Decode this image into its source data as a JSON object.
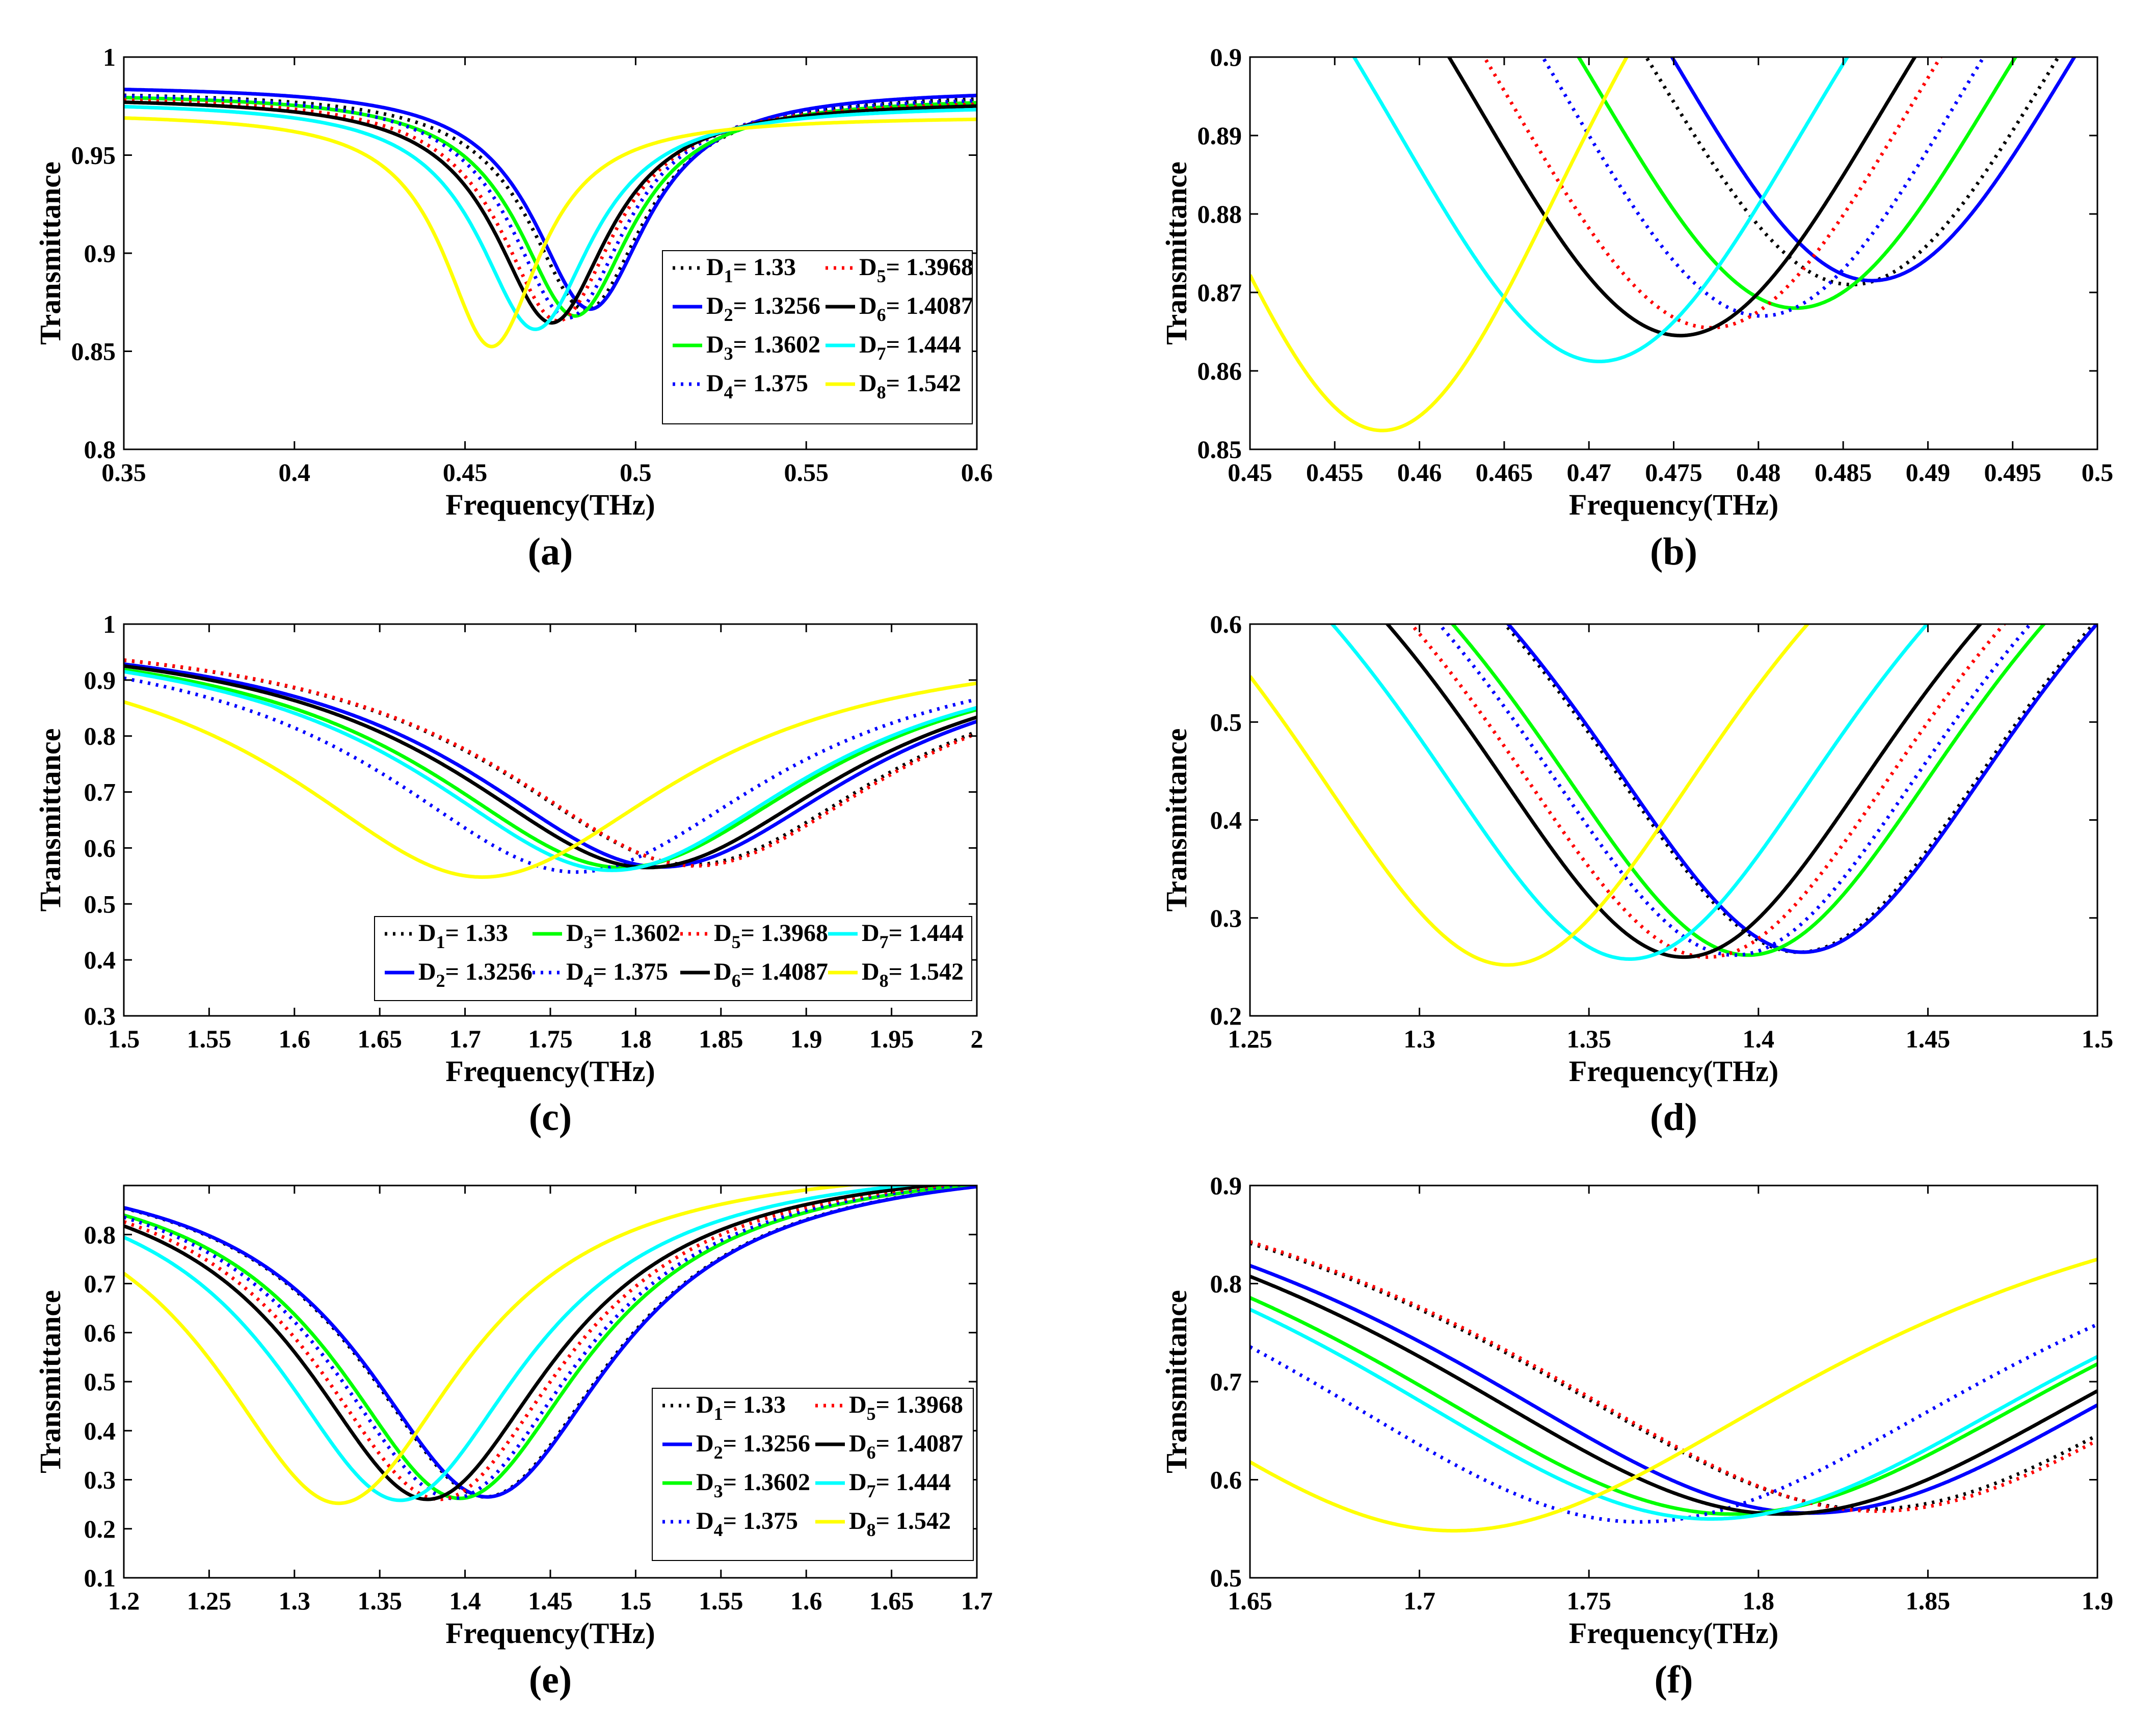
{
  "figure": {
    "series_styles": [
      {
        "name": "D1",
        "color": "#000000",
        "dash": "dotted"
      },
      {
        "name": "D2",
        "color": "#0000ff",
        "dash": "solid"
      },
      {
        "name": "D3",
        "color": "#00ff00",
        "dash": "solid"
      },
      {
        "name": "D4",
        "color": "#0000ff",
        "dash": "dotted"
      },
      {
        "name": "D5",
        "color": "#ff0000",
        "dash": "dotted"
      },
      {
        "name": "D6",
        "color": "#000000",
        "dash": "solid"
      },
      {
        "name": "D7",
        "color": "#00ffff",
        "dash": "solid"
      },
      {
        "name": "D8",
        "color": "#ffff00",
        "dash": "solid"
      }
    ],
    "legend_entries": [
      {
        "sub": "1",
        "value": "1.33"
      },
      {
        "sub": "2",
        "value": "1.3256"
      },
      {
        "sub": "3",
        "value": "1.3602"
      },
      {
        "sub": "4",
        "value": "1.375"
      },
      {
        "sub": "5",
        "value": "1.3968"
      },
      {
        "sub": "6",
        "value": "1.4087"
      },
      {
        "sub": "7",
        "value": "1.444"
      },
      {
        "sub": "8",
        "value": "1.542"
      }
    ]
  },
  "chart_data": [
    {
      "type": "line",
      "panel_label": "(a)",
      "xlabel": "Frequency(THz)",
      "ylabel": "Transmittance",
      "xlim": [
        0.35,
        0.6
      ],
      "ylim": [
        0.8,
        1
      ],
      "xticks": [
        "0.35",
        "0.4",
        "0.45",
        "0.5",
        "0.55",
        "0.6"
      ],
      "yticks": [
        "0.8",
        "0.85",
        "0.9",
        "0.95",
        "1"
      ],
      "legend": {
        "placement": "lower-right",
        "layout": "rows",
        "rows": [
          [
            0,
            4
          ],
          [
            1,
            5
          ],
          [
            2,
            6
          ],
          [
            3,
            7
          ]
        ]
      },
      "series": [
        {
          "name": "D1",
          "f0": 0.4855,
          "min": 0.871,
          "w": 0.0205,
          "b_low": 0.983,
          "b_high": 0.982
        },
        {
          "name": "D2",
          "f0": 0.4867,
          "min": 0.8715,
          "w": 0.0205,
          "b_low": 0.986,
          "b_high": 0.984
        },
        {
          "name": "D3",
          "f0": 0.4822,
          "min": 0.868,
          "w": 0.0205,
          "b_low": 0.982,
          "b_high": 0.98
        },
        {
          "name": "D4",
          "f0": 0.4802,
          "min": 0.867,
          "w": 0.0205,
          "b_low": 0.983,
          "b_high": 0.981
        },
        {
          "name": "D5",
          "f0": 0.4772,
          "min": 0.8655,
          "w": 0.0205,
          "b_low": 0.981,
          "b_high": 0.979
        },
        {
          "name": "D6",
          "f0": 0.4754,
          "min": 0.8645,
          "w": 0.0205,
          "b_low": 0.98,
          "b_high": 0.978
        },
        {
          "name": "D7",
          "f0": 0.4706,
          "min": 0.8612,
          "w": 0.0205,
          "b_low": 0.978,
          "b_high": 0.976
        },
        {
          "name": "D8",
          "f0": 0.4578,
          "min": 0.8524,
          "w": 0.0175,
          "b_low": 0.972,
          "b_high": 0.97
        }
      ]
    },
    {
      "type": "line",
      "panel_label": "(b)",
      "xlabel": "Frequency(THz)",
      "ylabel": "Transmittance",
      "xlim": [
        0.45,
        0.5
      ],
      "ylim": [
        0.85,
        0.9
      ],
      "xticks": [
        "0.45",
        "0.455",
        "0.46",
        "0.465",
        "0.47",
        "0.475",
        "0.48",
        "0.485",
        "0.49",
        "0.495",
        "0.5"
      ],
      "yticks": [
        "0.85",
        "0.86",
        "0.87",
        "0.88",
        "0.89",
        "0.9"
      ],
      "legend": null,
      "series": [
        {
          "name": "D1",
          "f0": 0.4855,
          "min": 0.871,
          "w": 0.0205,
          "b_low": 0.983,
          "b_high": 0.982
        },
        {
          "name": "D2",
          "f0": 0.4867,
          "min": 0.8715,
          "w": 0.0205,
          "b_low": 0.986,
          "b_high": 0.984
        },
        {
          "name": "D3",
          "f0": 0.4822,
          "min": 0.868,
          "w": 0.0205,
          "b_low": 0.982,
          "b_high": 0.98
        },
        {
          "name": "D4",
          "f0": 0.4802,
          "min": 0.867,
          "w": 0.0205,
          "b_low": 0.983,
          "b_high": 0.981
        },
        {
          "name": "D5",
          "f0": 0.4772,
          "min": 0.8655,
          "w": 0.0205,
          "b_low": 0.981,
          "b_high": 0.979
        },
        {
          "name": "D6",
          "f0": 0.4754,
          "min": 0.8645,
          "w": 0.0205,
          "b_low": 0.98,
          "b_high": 0.978
        },
        {
          "name": "D7",
          "f0": 0.4706,
          "min": 0.8612,
          "w": 0.0205,
          "b_low": 0.978,
          "b_high": 0.976
        },
        {
          "name": "D8",
          "f0": 0.4578,
          "min": 0.8524,
          "w": 0.0175,
          "b_low": 0.972,
          "b_high": 0.97
        }
      ]
    },
    {
      "type": "line",
      "panel_label": "(c)",
      "xlabel": "Frequency(THz)",
      "ylabel": "Transmittance",
      "xlim": [
        1.5,
        2
      ],
      "ylim": [
        0.3,
        1
      ],
      "xticks": [
        "1.5",
        "1.55",
        "1.6",
        "1.65",
        "1.7",
        "1.75",
        "1.8",
        "1.85",
        "1.9",
        "1.95",
        "2"
      ],
      "yticks": [
        "0.3",
        "0.4",
        "0.5",
        "0.6",
        "0.7",
        "0.8",
        "0.9",
        "1"
      ],
      "legend": {
        "placement": "bottom-center",
        "layout": "rows",
        "rows": [
          [
            0,
            2,
            4,
            6
          ],
          [
            1,
            3,
            5,
            7
          ]
        ]
      },
      "series": [
        {
          "name": "D1",
          "f0": 1.833,
          "min": 0.57,
          "w": 0.14,
          "b_low": 1.0,
          "b_high": 0.975
        },
        {
          "name": "D2",
          "f0": 1.815,
          "min": 0.566,
          "w": 0.14,
          "b_low": 1.0,
          "b_high": 0.975
        },
        {
          "name": "D3",
          "f0": 1.792,
          "min": 0.565,
          "w": 0.14,
          "b_low": 1.0,
          "b_high": 0.975
        },
        {
          "name": "D4",
          "f0": 1.765,
          "min": 0.557,
          "w": 0.14,
          "b_low": 1.0,
          "b_high": 0.975
        },
        {
          "name": "D5",
          "f0": 1.835,
          "min": 0.568,
          "w": 0.14,
          "b_low": 1.0,
          "b_high": 0.975
        },
        {
          "name": "D6",
          "f0": 1.807,
          "min": 0.565,
          "w": 0.14,
          "b_low": 1.0,
          "b_high": 0.975
        },
        {
          "name": "D7",
          "f0": 1.786,
          "min": 0.56,
          "w": 0.14,
          "b_low": 1.0,
          "b_high": 0.975
        },
        {
          "name": "D8",
          "f0": 1.71,
          "min": 0.548,
          "w": 0.14,
          "b_low": 1.0,
          "b_high": 0.975
        }
      ]
    },
    {
      "type": "line",
      "panel_label": "(d)",
      "xlabel": "Frequency(THz)",
      "ylabel": "Transmittance",
      "xlim": [
        1.25,
        1.5
      ],
      "ylim": [
        0.2,
        0.6
      ],
      "xticks": [
        "1.25",
        "1.3",
        "1.35",
        "1.4",
        "1.45",
        "1.5"
      ],
      "yticks": [
        "0.2",
        "0.3",
        "0.4",
        "0.5",
        "0.6"
      ],
      "legend": null,
      "series": [
        {
          "name": "D1",
          "f0": 1.412,
          "min": 0.265,
          "w": 0.09,
          "b_low": 0.96,
          "b_high": 0.96
        },
        {
          "name": "D2",
          "f0": 1.413,
          "min": 0.265,
          "w": 0.09,
          "b_low": 0.96,
          "b_high": 0.96
        },
        {
          "name": "D3",
          "f0": 1.397,
          "min": 0.262,
          "w": 0.09,
          "b_low": 0.96,
          "b_high": 0.96
        },
        {
          "name": "D4",
          "f0": 1.393,
          "min": 0.262,
          "w": 0.09,
          "b_low": 0.96,
          "b_high": 0.96
        },
        {
          "name": "D5",
          "f0": 1.385,
          "min": 0.26,
          "w": 0.09,
          "b_low": 0.96,
          "b_high": 0.96
        },
        {
          "name": "D6",
          "f0": 1.378,
          "min": 0.26,
          "w": 0.09,
          "b_low": 0.96,
          "b_high": 0.96
        },
        {
          "name": "D7",
          "f0": 1.362,
          "min": 0.258,
          "w": 0.09,
          "b_low": 0.96,
          "b_high": 0.96
        },
        {
          "name": "D8",
          "f0": 1.326,
          "min": 0.252,
          "w": 0.09,
          "b_low": 0.96,
          "b_high": 0.96
        }
      ]
    },
    {
      "type": "line",
      "panel_label": "(e)",
      "xlabel": "Frequency(THz)",
      "ylabel": "Transmittance",
      "xlim": [
        1.2,
        1.7
      ],
      "ylim": [
        0.1,
        0.9
      ],
      "xticks": [
        "1.2",
        "1.25",
        "1.3",
        "1.35",
        "1.4",
        "1.45",
        "1.5",
        "1.55",
        "1.6",
        "1.65",
        "1.7"
      ],
      "yticks": [
        "0.1",
        "0.2",
        "0.3",
        "0.4",
        "0.5",
        "0.6",
        "0.7",
        "0.8"
      ],
      "legend": {
        "placement": "lower-right",
        "layout": "rows",
        "rows": [
          [
            0,
            4
          ],
          [
            1,
            5
          ],
          [
            2,
            6
          ],
          [
            3,
            7
          ]
        ]
      },
      "series": [
        {
          "name": "D1",
          "f0": 1.412,
          "min": 0.265,
          "w": 0.09,
          "b_low": 0.96,
          "b_high": 0.96
        },
        {
          "name": "D2",
          "f0": 1.413,
          "min": 0.265,
          "w": 0.09,
          "b_low": 0.96,
          "b_high": 0.96
        },
        {
          "name": "D3",
          "f0": 1.397,
          "min": 0.262,
          "w": 0.09,
          "b_low": 0.96,
          "b_high": 0.96
        },
        {
          "name": "D4",
          "f0": 1.393,
          "min": 0.262,
          "w": 0.09,
          "b_low": 0.96,
          "b_high": 0.96
        },
        {
          "name": "D5",
          "f0": 1.385,
          "min": 0.26,
          "w": 0.09,
          "b_low": 0.96,
          "b_high": 0.96
        },
        {
          "name": "D6",
          "f0": 1.378,
          "min": 0.26,
          "w": 0.09,
          "b_low": 0.96,
          "b_high": 0.96
        },
        {
          "name": "D7",
          "f0": 1.362,
          "min": 0.258,
          "w": 0.09,
          "b_low": 0.96,
          "b_high": 0.96
        },
        {
          "name": "D8",
          "f0": 1.326,
          "min": 0.252,
          "w": 0.09,
          "b_low": 0.96,
          "b_high": 0.96
        }
      ]
    },
    {
      "type": "line",
      "panel_label": "(f)",
      "xlabel": "Frequency(THz)",
      "ylabel": "Transmittance",
      "xlim": [
        1.65,
        1.9
      ],
      "ylim": [
        0.5,
        0.9
      ],
      "xticks": [
        "1.65",
        "1.7",
        "1.75",
        "1.8",
        "1.85",
        "1.9"
      ],
      "yticks": [
        "0.5",
        "0.6",
        "0.7",
        "0.8",
        "0.9"
      ],
      "legend": null,
      "series": [
        {
          "name": "D1",
          "f0": 1.833,
          "min": 0.57,
          "w": 0.14,
          "b_low": 1.0,
          "b_high": 0.975
        },
        {
          "name": "D2",
          "f0": 1.815,
          "min": 0.566,
          "w": 0.14,
          "b_low": 1.0,
          "b_high": 0.975
        },
        {
          "name": "D3",
          "f0": 1.792,
          "min": 0.565,
          "w": 0.14,
          "b_low": 1.0,
          "b_high": 0.975
        },
        {
          "name": "D4",
          "f0": 1.765,
          "min": 0.557,
          "w": 0.14,
          "b_low": 1.0,
          "b_high": 0.975
        },
        {
          "name": "D5",
          "f0": 1.835,
          "min": 0.568,
          "w": 0.14,
          "b_low": 1.0,
          "b_high": 0.975
        },
        {
          "name": "D6",
          "f0": 1.807,
          "min": 0.565,
          "w": 0.14,
          "b_low": 1.0,
          "b_high": 0.975
        },
        {
          "name": "D7",
          "f0": 1.786,
          "min": 0.56,
          "w": 0.14,
          "b_low": 1.0,
          "b_high": 0.975
        },
        {
          "name": "D8",
          "f0": 1.71,
          "min": 0.548,
          "w": 0.14,
          "b_low": 1.0,
          "b_high": 0.975
        }
      ]
    }
  ]
}
